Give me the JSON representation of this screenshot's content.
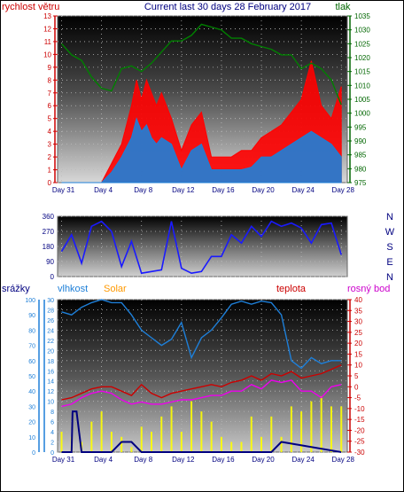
{
  "chart_data": [
    {
      "type": "line",
      "title": "Current last 30 days 28 February 2017",
      "left_axis": {
        "label": "rychlost větru",
        "min": 0,
        "max": 13,
        "ticks": [
          0,
          1,
          2,
          3,
          4,
          5,
          6,
          7,
          8,
          9,
          10,
          11,
          12,
          13
        ],
        "color": "#cc0000"
      },
      "right_axis": {
        "label": "tlak",
        "min": 975,
        "max": 1035,
        "ticks": [
          975,
          980,
          985,
          990,
          995,
          1000,
          1005,
          1010,
          1015,
          1020,
          1025,
          1030,
          1035
        ],
        "color": "#006600"
      },
      "x_ticks": [
        "Day 31",
        "Day 4",
        "Day 8",
        "Day 12",
        "Day 16",
        "Day 20",
        "Day 24",
        "Day 28"
      ],
      "x_tick_days": [
        0,
        4,
        8,
        12,
        16,
        20,
        24,
        28
      ],
      "x_range": [
        -0.4,
        28.6
      ],
      "series": [
        {
          "name": "wind_gust",
          "color": "#ff0000",
          "x": [
            0,
            2,
            4,
            5,
            6,
            7,
            7.5,
            8,
            8.5,
            9,
            9.5,
            10,
            11,
            12,
            13,
            14,
            15,
            16,
            17,
            18,
            19,
            20,
            21,
            22,
            23,
            24,
            25,
            26,
            27,
            28
          ],
          "y": [
            0,
            0,
            0,
            1.5,
            3,
            6,
            8,
            6.5,
            8,
            7,
            6,
            7,
            5,
            2.5,
            4.5,
            5.5,
            2,
            2,
            2,
            2.5,
            2.5,
            3.5,
            4,
            4.5,
            5.5,
            6.5,
            9.5,
            6,
            5,
            7.5
          ]
        },
        {
          "name": "wind_avg",
          "color": "#1e7fd8",
          "x": [
            0,
            2,
            4,
            5,
            6,
            7,
            7.5,
            8,
            8.5,
            9,
            9.5,
            10,
            11,
            12,
            13,
            14,
            15,
            16,
            17,
            18,
            19,
            20,
            21,
            22,
            23,
            24,
            25,
            26,
            27,
            28
          ],
          "y": [
            0,
            0,
            0,
            0.8,
            2,
            3.5,
            5,
            4,
            4.5,
            3.5,
            3,
            3.5,
            3,
            1,
            2.5,
            3,
            1,
            1,
            1,
            1,
            1.2,
            2,
            2,
            2.5,
            3,
            3.5,
            4,
            3.5,
            3,
            2
          ]
        },
        {
          "name": "tlak",
          "color": "#008000",
          "x": [
            0,
            1,
            2,
            3,
            4,
            5,
            6,
            7,
            8,
            9,
            10,
            11,
            12,
            13,
            14,
            15,
            16,
            17,
            18,
            19,
            20,
            21,
            22,
            23,
            24,
            25,
            26,
            27,
            28
          ],
          "y": [
            1025,
            1021,
            1019,
            1013,
            1009,
            1008,
            1016,
            1017,
            1015,
            1018,
            1022,
            1026,
            1026,
            1028,
            1032,
            1031,
            1030,
            1027,
            1027,
            1025,
            1024,
            1023,
            1021,
            1021,
            1016,
            1018,
            1016,
            1012,
            1003
          ]
        }
      ]
    },
    {
      "type": "line",
      "left_axis": {
        "min": 0,
        "max": 360,
        "ticks": [
          0,
          90,
          180,
          270,
          360
        ],
        "color": "#000080"
      },
      "right_labels": [
        "N",
        "W",
        "S",
        "E",
        "N"
      ],
      "x_range": [
        -0.4,
        28.6
      ],
      "series": [
        {
          "name": "wind_direction",
          "color": "#1a1aff",
          "x": [
            0,
            1,
            2,
            3,
            4,
            5,
            6,
            7,
            8,
            9,
            10,
            11,
            12,
            13,
            14,
            15,
            16,
            17,
            18,
            19,
            20,
            21,
            22,
            23,
            24,
            25,
            26,
            27,
            28
          ],
          "y": [
            150,
            250,
            80,
            300,
            330,
            270,
            60,
            210,
            20,
            30,
            40,
            330,
            50,
            20,
            30,
            120,
            120,
            250,
            200,
            300,
            240,
            330,
            300,
            320,
            290,
            200,
            310,
            320,
            130
          ]
        }
      ]
    },
    {
      "type": "line",
      "left_axis": {
        "label": "srážky",
        "min": 0,
        "max": 30,
        "ticks": [
          0,
          2,
          4,
          6,
          8,
          10,
          12,
          14,
          16,
          18,
          20,
          22,
          24,
          26,
          28,
          30
        ],
        "color": "#1e7fd8"
      },
      "left_axis2": {
        "label": "vlhkost",
        "min": 0,
        "max": 100,
        "ticks": [
          0,
          10,
          20,
          30,
          40,
          50,
          60,
          70,
          80,
          90,
          100
        ],
        "color": "#1e7fd8"
      },
      "right_axis": {
        "label": "teplota",
        "min": -30,
        "max": 40,
        "ticks": [
          -30,
          -25,
          -20,
          -15,
          -10,
          -5,
          0,
          5,
          10,
          15,
          20,
          25,
          30,
          35,
          40
        ],
        "color": "#cc0000"
      },
      "extra_labels": [
        "Solar",
        "rosný bod"
      ],
      "x_ticks": [
        "Day 31",
        "Day 4",
        "Day 8",
        "Day 12",
        "Day 16",
        "Day 20",
        "Day 24",
        "Day 28"
      ],
      "x_tick_days": [
        0,
        4,
        8,
        12,
        16,
        20,
        24,
        28
      ],
      "x_range": [
        -0.4,
        28.6
      ],
      "series": [
        {
          "name": "vlhkost",
          "color": "#1e7fd8",
          "x": [
            0,
            1,
            2,
            3,
            4,
            5,
            6,
            7,
            8,
            9,
            10,
            11,
            12,
            13,
            14,
            15,
            16,
            17,
            18,
            19,
            20,
            21,
            22,
            23,
            24,
            25,
            26,
            27,
            28
          ],
          "y": [
            92,
            90,
            95,
            98,
            100,
            98,
            98,
            90,
            80,
            75,
            70,
            74,
            85,
            62,
            75,
            80,
            88,
            97,
            99,
            97,
            99,
            98,
            90,
            60,
            55,
            62,
            58,
            60,
            60
          ]
        },
        {
          "name": "teplota",
          "color": "#cc0000",
          "x": [
            0,
            1,
            2,
            3,
            4,
            5,
            6,
            7,
            8,
            9,
            10,
            11,
            12,
            13,
            14,
            15,
            16,
            17,
            18,
            19,
            20,
            21,
            22,
            23,
            24,
            25,
            26,
            27,
            28
          ],
          "y": [
            -6,
            -5,
            -3,
            -1,
            0,
            0,
            -2,
            -4,
            1,
            -3,
            -5,
            -3,
            -2,
            -1,
            0,
            1,
            0,
            2,
            3,
            5,
            3,
            6,
            5,
            7,
            4,
            5,
            6,
            8,
            10
          ]
        },
        {
          "name": "rosný bod",
          "color": "#ee00ee",
          "x": [
            0,
            1,
            2,
            3,
            4,
            5,
            6,
            7,
            8,
            9,
            10,
            11,
            12,
            13,
            14,
            15,
            16,
            17,
            18,
            19,
            20,
            21,
            22,
            23,
            24,
            25,
            26,
            27,
            28
          ],
          "y": [
            -9,
            -8,
            -5,
            -3,
            -2,
            -3,
            -6,
            -8,
            -7,
            -8,
            -8,
            -7,
            -6,
            -6,
            -5,
            -4,
            -4,
            -2,
            -2,
            1,
            -1,
            3,
            2,
            3,
            -2,
            -2,
            -5,
            0,
            1
          ]
        },
        {
          "name": "srážky",
          "color": "#000080",
          "x": [
            0,
            1,
            1.1,
            1.5,
            2,
            3,
            5,
            6,
            7,
            8,
            19,
            20,
            21,
            22,
            28
          ],
          "y": [
            0,
            0,
            8,
            8,
            0,
            0,
            0,
            2,
            2,
            0,
            0,
            0,
            0,
            2,
            0
          ]
        },
        {
          "name": "Solar",
          "color": "#ffff00",
          "x": [
            0,
            1,
            2,
            3,
            4,
            5,
            6,
            7,
            8,
            9,
            10,
            11,
            12,
            13,
            14,
            15,
            16,
            17,
            18,
            19,
            20,
            21,
            22,
            23,
            24,
            25,
            26,
            27,
            28
          ],
          "y": [
            4,
            3,
            2,
            6,
            8,
            4,
            3,
            1,
            5,
            4,
            7,
            9,
            4,
            10,
            8,
            6,
            3,
            2,
            2,
            7,
            3,
            7,
            3,
            9,
            8,
            10,
            11,
            9,
            9
          ]
        }
      ]
    }
  ]
}
